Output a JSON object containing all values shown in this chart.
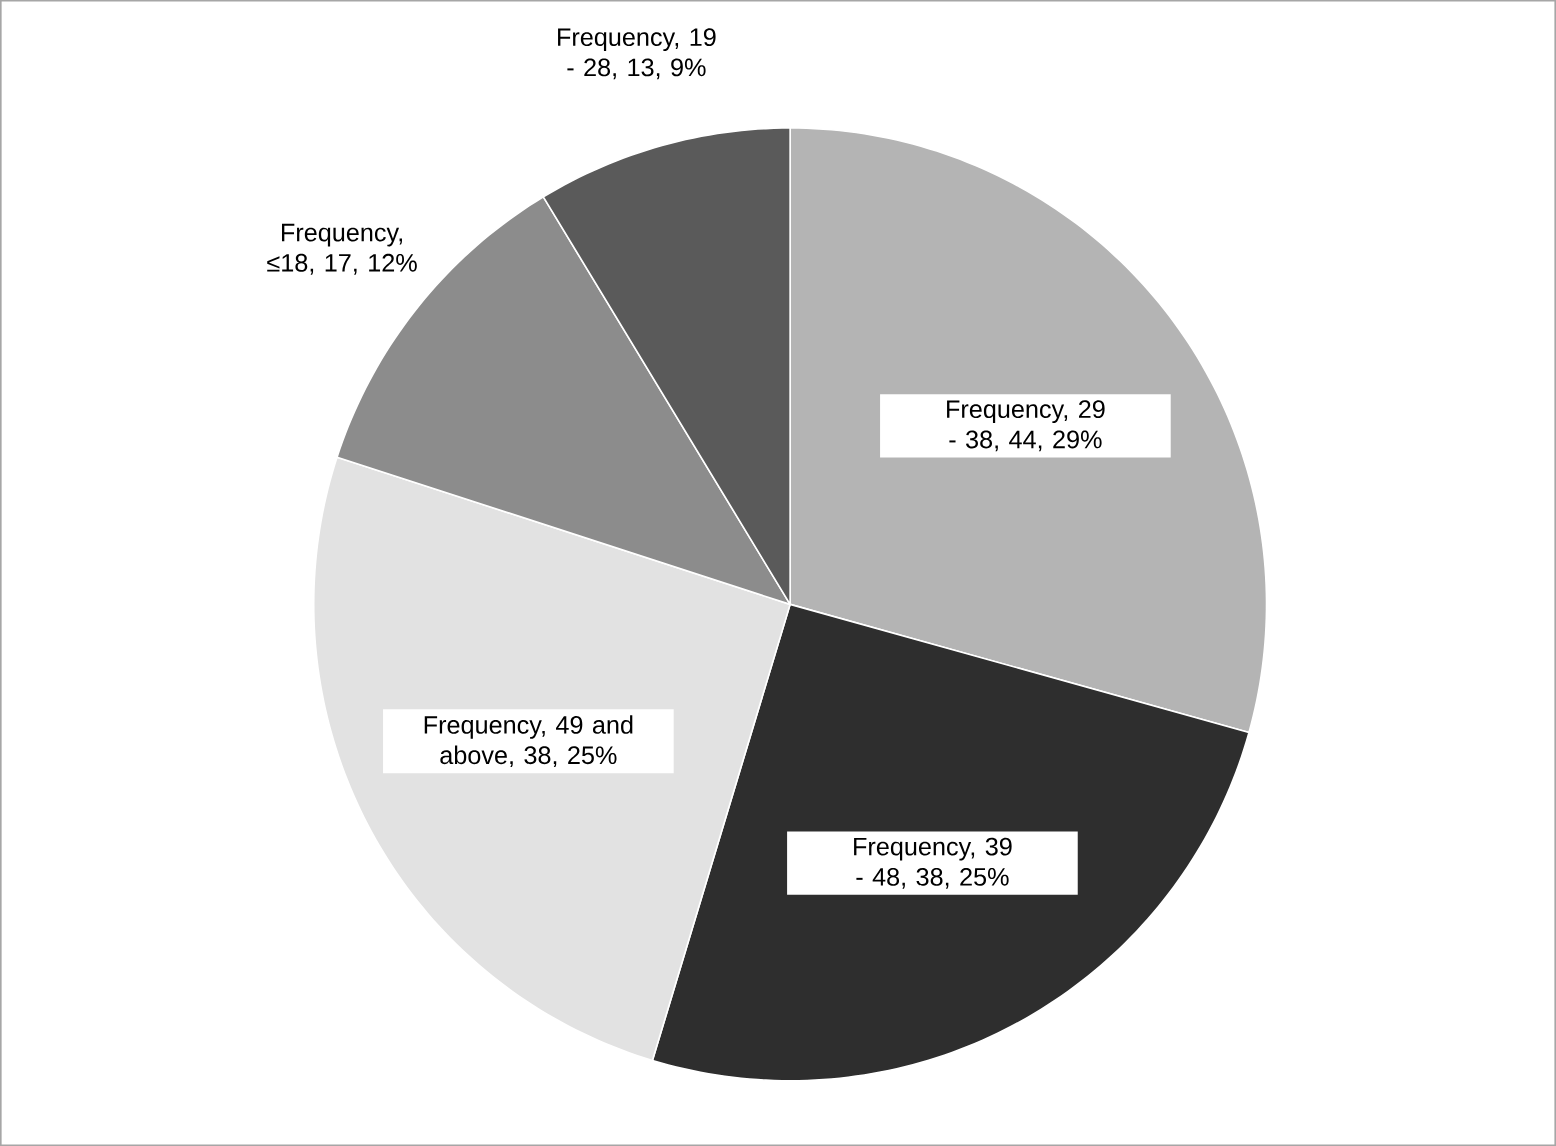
{
  "chart_data": {
    "type": "pie",
    "categories": [
      "Frequency, 29 - 38, 44, 29%",
      "Frequency, 39 - 48, 38, 25%",
      "Frequency, 49 and above, 38, 25%",
      "Frequency, ≤18, 17, 12%",
      "Frequency, 19 - 28, 13, 9%"
    ],
    "values": [
      44,
      38,
      38,
      17,
      13
    ],
    "colors": [
      "#b4b4b4",
      "#2e2e2e",
      "#e2e2e2",
      "#8c8c8c",
      "#5a5a5a"
    ]
  }
}
